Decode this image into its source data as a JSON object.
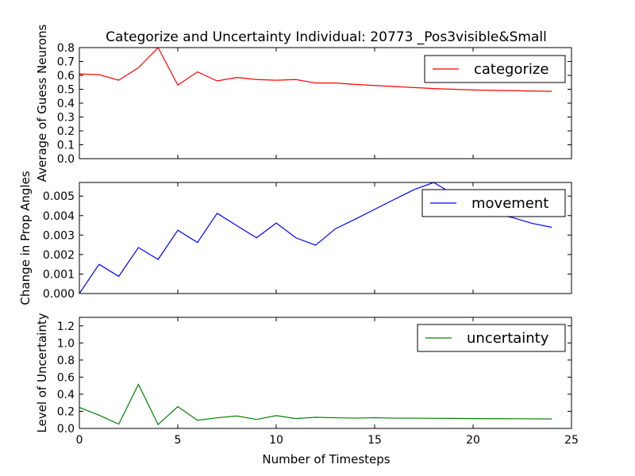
{
  "chart_data": {
    "type": "line",
    "title": "Categorize and Uncertainty Individual: 20773 _Pos3visible&Small",
    "shared_xlabel": "Number of Timesteps",
    "xlim": [
      0,
      25
    ],
    "xticks": [
      "0",
      "5",
      "10",
      "15",
      "20",
      "25"
    ],
    "panels": [
      {
        "ylabel": "Average of Guess Neurons",
        "ylim": [
          0,
          0.8
        ],
        "yticks": [
          "0.0",
          "0.1",
          "0.2",
          "0.3",
          "0.4",
          "0.5",
          "0.6",
          "0.7",
          "0.8"
        ],
        "legend_position": "top-right",
        "series": [
          {
            "name": "categorize",
            "color": "#ff0000",
            "x": [
              0,
              1,
              2,
              3,
              4,
              5,
              6,
              7,
              8,
              9,
              10,
              11,
              12,
              13,
              14,
              15,
              16,
              17,
              18,
              19,
              20,
              21,
              22,
              23,
              24
            ],
            "y": [
              0.61,
              0.605,
              0.565,
              0.655,
              0.8,
              0.53,
              0.625,
              0.56,
              0.585,
              0.57,
              0.565,
              0.57,
              0.545,
              0.545,
              0.535,
              0.527,
              0.52,
              0.512,
              0.505,
              0.5,
              0.495,
              0.492,
              0.49,
              0.487,
              0.485
            ]
          }
        ]
      },
      {
        "ylabel": "Change in Prop Angles",
        "ylim": [
          0,
          0.0057
        ],
        "yticks": [
          "0.000",
          "0.001",
          "0.002",
          "0.003",
          "0.004",
          "0.005"
        ],
        "yticks_values": [
          0,
          0.001,
          0.002,
          0.003,
          0.004,
          0.005
        ],
        "legend_position": "top-right",
        "series": [
          {
            "name": "movement",
            "color": "#0000ff",
            "x": [
              0,
              1,
              2,
              3,
              4,
              5,
              6,
              7,
              8,
              9,
              10,
              11,
              12,
              13,
              14,
              15,
              16,
              17,
              18,
              19,
              20,
              21,
              22,
              23,
              24
            ],
            "y": [
              0.0,
              0.0015,
              0.00088,
              0.00236,
              0.00175,
              0.00325,
              0.00262,
              0.00412,
              0.00348,
              0.00286,
              0.00362,
              0.00286,
              0.00248,
              0.00332,
              0.00381,
              0.00432,
              0.00483,
              0.00533,
              0.0057,
              0.0051,
              0.0045,
              0.0041,
              0.0039,
              0.0036,
              0.0034
            ]
          }
        ]
      },
      {
        "ylabel": "Level of Uncertainty",
        "ylim": [
          0,
          1.3
        ],
        "yticks": [
          "0.0",
          "0.2",
          "0.4",
          "0.6",
          "0.8",
          "1.0",
          "1.2"
        ],
        "yticks_values": [
          0,
          0.2,
          0.4,
          0.6,
          0.8,
          1.0,
          1.2
        ],
        "legend_position": "top-right",
        "series": [
          {
            "name": "uncertainty",
            "color": "#008000",
            "x": [
              0,
              1,
              2,
              3,
              4,
              5,
              6,
              7,
              8,
              9,
              10,
              11,
              12,
              13,
              14,
              15,
              16,
              17,
              18,
              19,
              20,
              21,
              22,
              23,
              24
            ],
            "y": [
              0.245,
              0.155,
              0.05,
              0.515,
              0.045,
              0.255,
              0.095,
              0.125,
              0.145,
              0.105,
              0.15,
              0.115,
              0.13,
              0.125,
              0.12,
              0.125,
              0.12,
              0.12,
              0.118,
              0.117,
              0.115,
              0.114,
              0.113,
              0.112,
              0.11
            ]
          }
        ]
      }
    ]
  }
}
